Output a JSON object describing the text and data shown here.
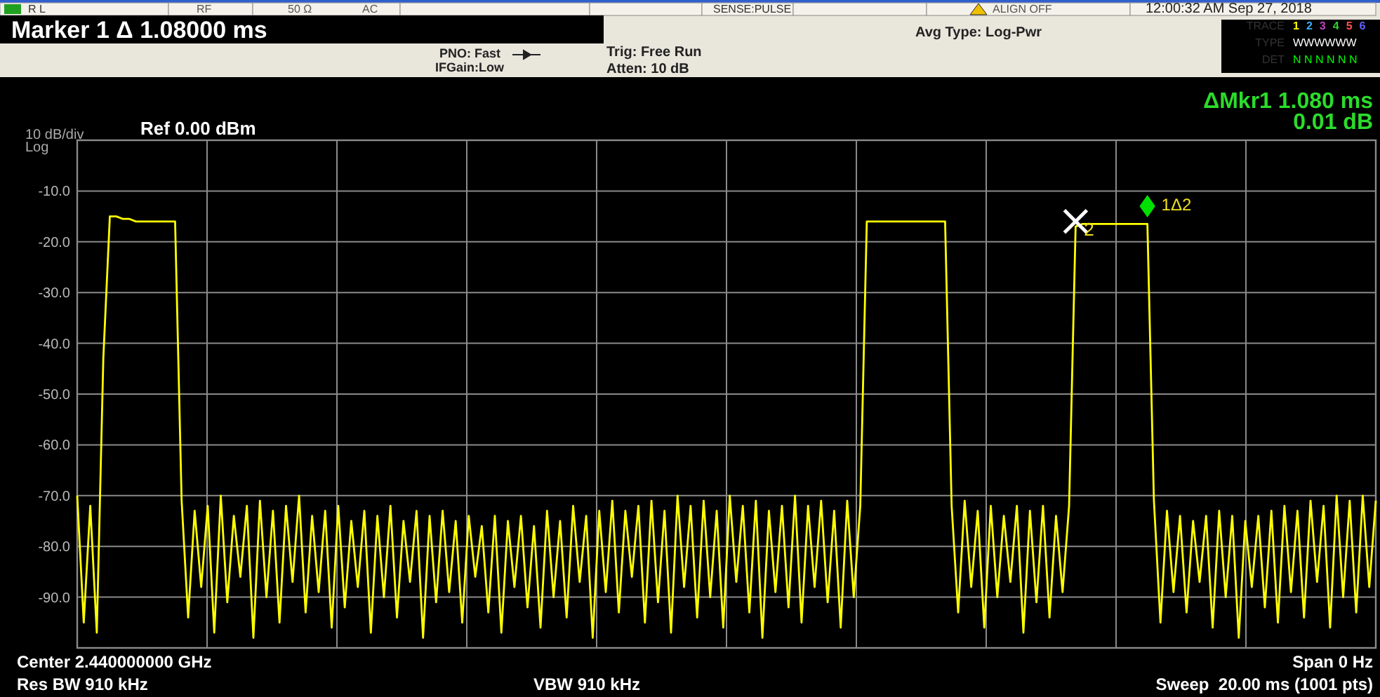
{
  "chart_data": {
    "type": "line",
    "title": "Marker 1 Δ 1.08000 ms",
    "annotations": [
      "R L",
      "RF",
      "50 Ω",
      "AC",
      "SENSE:PULSE",
      "ALIGN OFF",
      "12:00:32 AM Sep 27, 2018",
      "PNO: Fast",
      "IFGain:Low",
      "Trig: Free Run",
      "Atten: 10 dB",
      "Avg Type: Log-Pwr",
      "TRACE",
      "1 2 3 4 5 6",
      "TYPE",
      "WWWWWW",
      "DET",
      "N N N N N N",
      "ΔMkr1 1.080 ms",
      "0.01 dB",
      "Log",
      "Ref 0.00 dBm",
      "Center 2.440000000 GHz",
      "Res BW 910 kHz",
      "VBW 910 kHz",
      "Span 0 Hz",
      "Sweep  20.00 ms (1001 pts)"
    ],
    "categories": [
      null,
      null,
      null,
      null,
      null,
      null,
      null,
      null,
      null,
      null,
      null,
      null,
      null,
      null,
      null,
      null,
      null,
      null,
      null,
      null,
      null,
      null,
      null,
      null,
      null,
      null,
      null,
      null,
      null,
      null,
      null,
      null,
      null,
      null,
      null,
      null,
      null,
      null,
      null,
      null,
      null,
      null,
      null,
      null,
      null,
      null,
      null,
      null,
      null,
      null,
      null,
      null,
      null,
      null,
      null,
      null,
      null,
      null,
      null,
      null,
      null,
      null,
      null,
      null,
      null,
      null,
      null,
      null,
      null,
      null,
      null,
      null,
      null,
      null,
      null,
      null,
      null,
      null,
      null,
      null,
      null,
      null,
      null,
      null,
      null,
      null,
      null,
      null,
      null,
      null,
      null,
      null,
      null,
      null,
      null,
      null,
      null,
      null,
      null,
      null,
      null,
      null,
      null,
      null,
      null,
      null,
      null,
      null,
      null,
      null,
      null,
      null,
      null,
      null,
      null,
      null,
      null,
      null,
      null,
      null,
      null,
      null,
      null,
      null,
      null,
      null,
      null,
      null,
      null,
      null,
      null,
      null,
      null,
      null,
      null,
      null,
      null,
      null,
      null,
      null,
      null,
      null,
      null,
      null,
      null,
      null,
      null,
      null,
      null,
      null,
      null,
      null,
      null,
      null,
      null,
      null,
      null,
      null,
      null,
      null,
      null,
      null,
      null,
      null,
      null,
      null,
      null,
      null,
      null,
      null,
      null,
      null,
      null,
      null,
      null,
      null,
      null,
      null,
      null,
      null,
      null,
      null,
      null,
      null,
      null,
      null,
      null,
      null,
      null,
      null,
      null,
      null,
      null,
      null,
      null,
      null,
      null,
      null,
      null,
      null
    ],
    "ylabel": "10 dB/div",
    "ylim": [
      -100,
      0
    ],
    "yticks": [
      {
        "value": -10,
        "label": "-10.0"
      },
      {
        "value": -20,
        "label": "-20.0"
      },
      {
        "value": -30,
        "label": "-30.0"
      },
      {
        "value": -40,
        "label": "-40.0"
      },
      {
        "value": -50,
        "label": "-50.0"
      },
      {
        "value": -60,
        "label": "-60.0"
      },
      {
        "value": -70,
        "label": "-70.0"
      },
      {
        "value": -80,
        "label": "-80.0"
      },
      {
        "value": -90,
        "label": "-90.0"
      }
    ],
    "grid": true,
    "legend": false,
    "series": [
      {
        "color": "#ffff00",
        "values": [
          -70,
          -95,
          -72,
          -97,
          -43,
          -15,
          -15,
          -15.5,
          -15.5,
          -16,
          -16,
          -16,
          -16,
          -16,
          -16,
          -16,
          -71,
          -94,
          -73,
          -88,
          -72,
          -97,
          -70,
          -91,
          -74,
          -86,
          -72,
          -98,
          -71,
          -90,
          -73,
          -95,
          -72,
          -87,
          -70,
          -93,
          -74,
          -89,
          -73,
          -96,
          -72,
          -92,
          -75,
          -88,
          -73,
          -97,
          -74,
          -90,
          -72,
          -94,
          -75,
          -87,
          -73,
          -98,
          -74,
          -91,
          -73,
          -89,
          -75,
          -95,
          -74,
          -86,
          -76,
          -93,
          -74,
          -97,
          -75,
          -88,
          -74,
          -92,
          -76,
          -96,
          -73,
          -90,
          -75,
          -94,
          -72,
          -87,
          -74,
          -98,
          -73,
          -89,
          -71,
          -93,
          -73,
          -86,
          -72,
          -95,
          -71,
          -91,
          -73,
          -97,
          -70,
          -88,
          -72,
          -94,
          -71,
          -90,
          -73,
          -96,
          -70,
          -87,
          -72,
          -93,
          -71,
          -98,
          -73,
          -89,
          -72,
          -92,
          -70,
          -95,
          -72,
          -88,
          -71,
          -91,
          -73,
          -96,
          -71,
          -90,
          -72,
          -16,
          -16,
          -16,
          -16,
          -16,
          -16,
          -16,
          -16,
          -16,
          -16,
          -16,
          -16,
          -16,
          -72,
          -93,
          -71,
          -88,
          -73,
          -96,
          -72,
          -90,
          -74,
          -87,
          -72,
          -97,
          -73,
          -91,
          -72,
          -94,
          -74,
          -89,
          -72,
          -17,
          -16.5,
          -16.5,
          -16.5,
          -16.5,
          -16.5,
          -16.5,
          -16.5,
          -16.5,
          -16.5,
          -16.5,
          -16.5,
          -71,
          -95,
          -73,
          -89,
          -74,
          -93,
          -75,
          -87,
          -74,
          -96,
          -73,
          -90,
          -74,
          -98,
          -75,
          -88,
          -74,
          -92,
          -73,
          -95,
          -72,
          -89,
          -73,
          -94,
          -71,
          -87,
          -72,
          -96,
          -70,
          -90,
          -71,
          -93,
          -70,
          -88,
          -71
        ]
      },
      {
        "name": "2",
        "type": "scatter",
        "marker": "cross",
        "color": "#ffffff",
        "values": [
          null,
          null,
          null,
          null,
          null,
          null,
          null,
          null,
          null,
          null,
          null,
          null,
          null,
          null,
          null,
          null,
          null,
          null,
          null,
          null,
          null,
          null,
          null,
          null,
          null,
          null,
          null,
          null,
          null,
          null,
          null,
          null,
          null,
          null,
          null,
          null,
          null,
          null,
          null,
          null,
          null,
          null,
          null,
          null,
          null,
          null,
          null,
          null,
          null,
          null,
          null,
          null,
          null,
          null,
          null,
          null,
          null,
          null,
          null,
          null,
          null,
          null,
          null,
          null,
          null,
          null,
          null,
          null,
          null,
          null,
          null,
          null,
          null,
          null,
          null,
          null,
          null,
          null,
          null,
          null,
          null,
          null,
          null,
          null,
          null,
          null,
          null,
          null,
          null,
          null,
          null,
          null,
          null,
          null,
          null,
          null,
          null,
          null,
          null,
          null,
          null,
          null,
          null,
          null,
          null,
          null,
          null,
          null,
          null,
          null,
          null,
          null,
          null,
          null,
          null,
          null,
          null,
          null,
          null,
          null,
          null,
          null,
          null,
          null,
          null,
          null,
          null,
          null,
          null,
          null,
          null,
          null,
          null,
          null,
          null,
          null,
          null,
          null,
          null,
          null,
          null,
          null,
          null,
          null,
          null,
          null,
          null,
          null,
          null,
          null,
          null,
          null,
          null,
          -16,
          null,
          null,
          null,
          null,
          null,
          null,
          null,
          null,
          null,
          null,
          null,
          null,
          null,
          null,
          null,
          null,
          null,
          null,
          null,
          null,
          null,
          null,
          null,
          null,
          null,
          null,
          null,
          null,
          null,
          null,
          null,
          null,
          null,
          null,
          null,
          null,
          null,
          null,
          null,
          null,
          null,
          null,
          null,
          null,
          null,
          null
        ]
      },
      {
        "name": "1Δ2",
        "type": "scatter",
        "marker": "diamond",
        "color": "#00e000",
        "values": [
          null,
          null,
          null,
          null,
          null,
          null,
          null,
          null,
          null,
          null,
          null,
          null,
          null,
          null,
          null,
          null,
          null,
          null,
          null,
          null,
          null,
          null,
          null,
          null,
          null,
          null,
          null,
          null,
          null,
          null,
          null,
          null,
          null,
          null,
          null,
          null,
          null,
          null,
          null,
          null,
          null,
          null,
          null,
          null,
          null,
          null,
          null,
          null,
          null,
          null,
          null,
          null,
          null,
          null,
          null,
          null,
          null,
          null,
          null,
          null,
          null,
          null,
          null,
          null,
          null,
          null,
          null,
          null,
          null,
          null,
          null,
          null,
          null,
          null,
          null,
          null,
          null,
          null,
          null,
          null,
          null,
          null,
          null,
          null,
          null,
          null,
          null,
          null,
          null,
          null,
          null,
          null,
          null,
          null,
          null,
          null,
          null,
          null,
          null,
          null,
          null,
          null,
          null,
          null,
          null,
          null,
          null,
          null,
          null,
          null,
          null,
          null,
          null,
          null,
          null,
          null,
          null,
          null,
          null,
          null,
          null,
          null,
          null,
          null,
          null,
          null,
          null,
          null,
          null,
          null,
          null,
          null,
          null,
          null,
          null,
          null,
          null,
          null,
          null,
          null,
          null,
          null,
          null,
          null,
          null,
          null,
          null,
          null,
          null,
          null,
          null,
          null,
          null,
          null,
          null,
          null,
          null,
          null,
          null,
          null,
          null,
          null,
          null,
          null,
          -13,
          null,
          null,
          null,
          null,
          null,
          null,
          null,
          null,
          null,
          null,
          null,
          null,
          null,
          null,
          null,
          null,
          null,
          null,
          null,
          null,
          null,
          null,
          null,
          null,
          null,
          null,
          null,
          null,
          null,
          null,
          null,
          null,
          null,
          null,
          null
        ]
      }
    ]
  }
}
